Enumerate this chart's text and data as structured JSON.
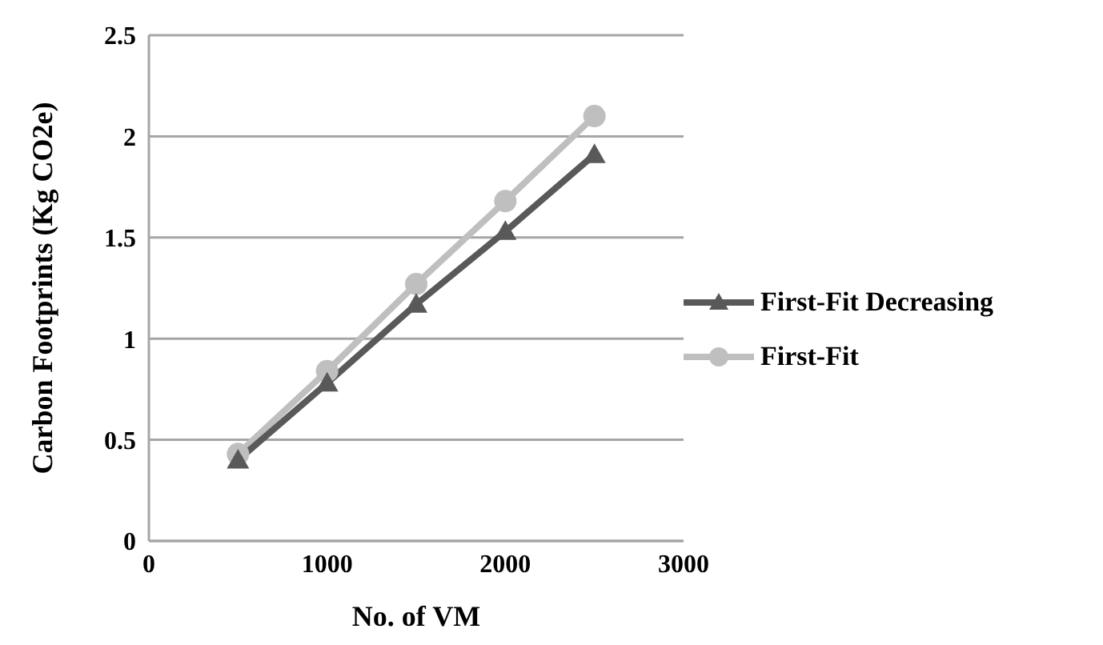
{
  "chart_data": {
    "type": "line",
    "xlabel": "No. of VM",
    "ylabel": "Carbon Footprints (Kg CO2e)",
    "x": [
      500,
      1000,
      1500,
      2000,
      2500
    ],
    "series": [
      {
        "name": "First-Fit Decreasing",
        "color": "#595959",
        "marker": "triangle",
        "values": [
          0.4,
          0.78,
          1.17,
          1.53,
          1.91
        ]
      },
      {
        "name": "First-Fit",
        "color": "#bfbfbf",
        "marker": "circle",
        "values": [
          0.43,
          0.84,
          1.27,
          1.68,
          2.1
        ]
      }
    ],
    "xlim": [
      0,
      3000
    ],
    "xticks": [
      0,
      1000,
      2000,
      3000
    ],
    "ylim": [
      0,
      2.5
    ],
    "yticks": [
      0,
      0.5,
      1,
      1.5,
      2,
      2.5
    ],
    "grid": "y",
    "legend": "right",
    "line_style": "solid"
  }
}
